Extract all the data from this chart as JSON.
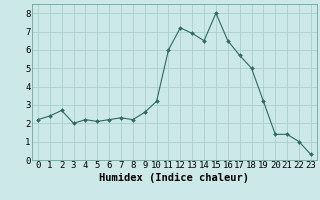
{
  "x": [
    0,
    1,
    2,
    3,
    4,
    5,
    6,
    7,
    8,
    9,
    10,
    11,
    12,
    13,
    14,
    15,
    16,
    17,
    18,
    19,
    20,
    21,
    22,
    23
  ],
  "y": [
    2.2,
    2.4,
    2.7,
    2.0,
    2.2,
    2.1,
    2.2,
    2.3,
    2.2,
    2.6,
    3.2,
    6.0,
    7.2,
    6.9,
    6.5,
    8.0,
    6.5,
    5.7,
    5.0,
    3.2,
    1.4,
    1.4,
    1.0,
    0.3
  ],
  "xlabel": "Humidex (Indice chaleur)",
  "ylim": [
    0,
    8.5
  ],
  "xlim": [
    -0.5,
    23.5
  ],
  "yticks": [
    0,
    1,
    2,
    3,
    4,
    5,
    6,
    7,
    8
  ],
  "xticks": [
    0,
    1,
    2,
    3,
    4,
    5,
    6,
    7,
    8,
    9,
    10,
    11,
    12,
    13,
    14,
    15,
    16,
    17,
    18,
    19,
    20,
    21,
    22,
    23
  ],
  "line_color": "#2d6b5e",
  "marker_color": "#2d6b5e",
  "bg_color": "#cce8e8",
  "grid_color": "#aad0cc",
  "xlabel_fontsize": 7.5,
  "tick_fontsize": 6.5
}
